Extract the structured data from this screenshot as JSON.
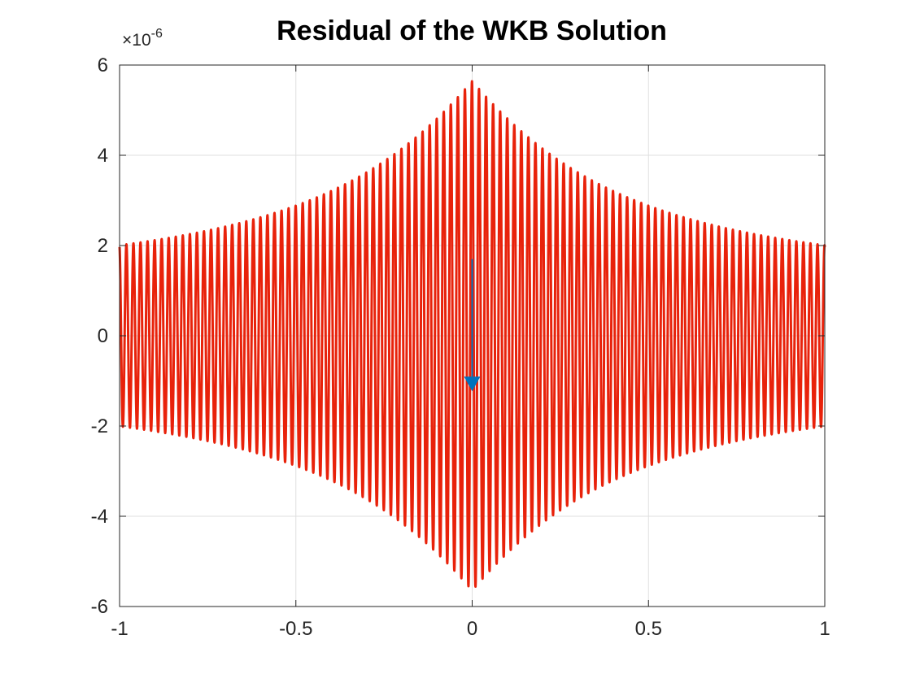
{
  "chart_data": {
    "type": "line",
    "title": "Residual of the WKB Solution",
    "xlabel": "",
    "ylabel": "",
    "xlim": [
      -1,
      1
    ],
    "ylim": [
      -6e-06,
      6e-06
    ],
    "y_exponent_label": "×10",
    "y_exponent_power": "-6",
    "x_ticks": [
      {
        "value": -1,
        "label": "-1"
      },
      {
        "value": -0.5,
        "label": "-0.5"
      },
      {
        "value": 0,
        "label": "0"
      },
      {
        "value": 0.5,
        "label": "0.5"
      },
      {
        "value": 1,
        "label": "1"
      }
    ],
    "y_ticks": [
      {
        "value": -6e-06,
        "label": "-6"
      },
      {
        "value": -4e-06,
        "label": "-4"
      },
      {
        "value": -2e-06,
        "label": "-2"
      },
      {
        "value": 0,
        "label": "0"
      },
      {
        "value": 2e-06,
        "label": "2"
      },
      {
        "value": 4e-06,
        "label": "4"
      },
      {
        "value": 6e-06,
        "label": "6"
      }
    ],
    "grid": true,
    "series": [
      {
        "color": "#e8220b",
        "description": "oscillating residual with envelope peaking at x=0",
        "envelope_peak": 5.65e-06,
        "envelope_edge": 1.2e-06,
        "oscillations": 100,
        "x_range": [
          -1,
          1
        ]
      }
    ],
    "marker": {
      "x": 0,
      "y": -1.05e-06,
      "shape": "down-triangle",
      "color": "#0072bd"
    },
    "marker_stem": {
      "x": 0,
      "y_from": 1.7e-06,
      "y_to": -1.05e-06,
      "color": "#0072bd"
    }
  }
}
